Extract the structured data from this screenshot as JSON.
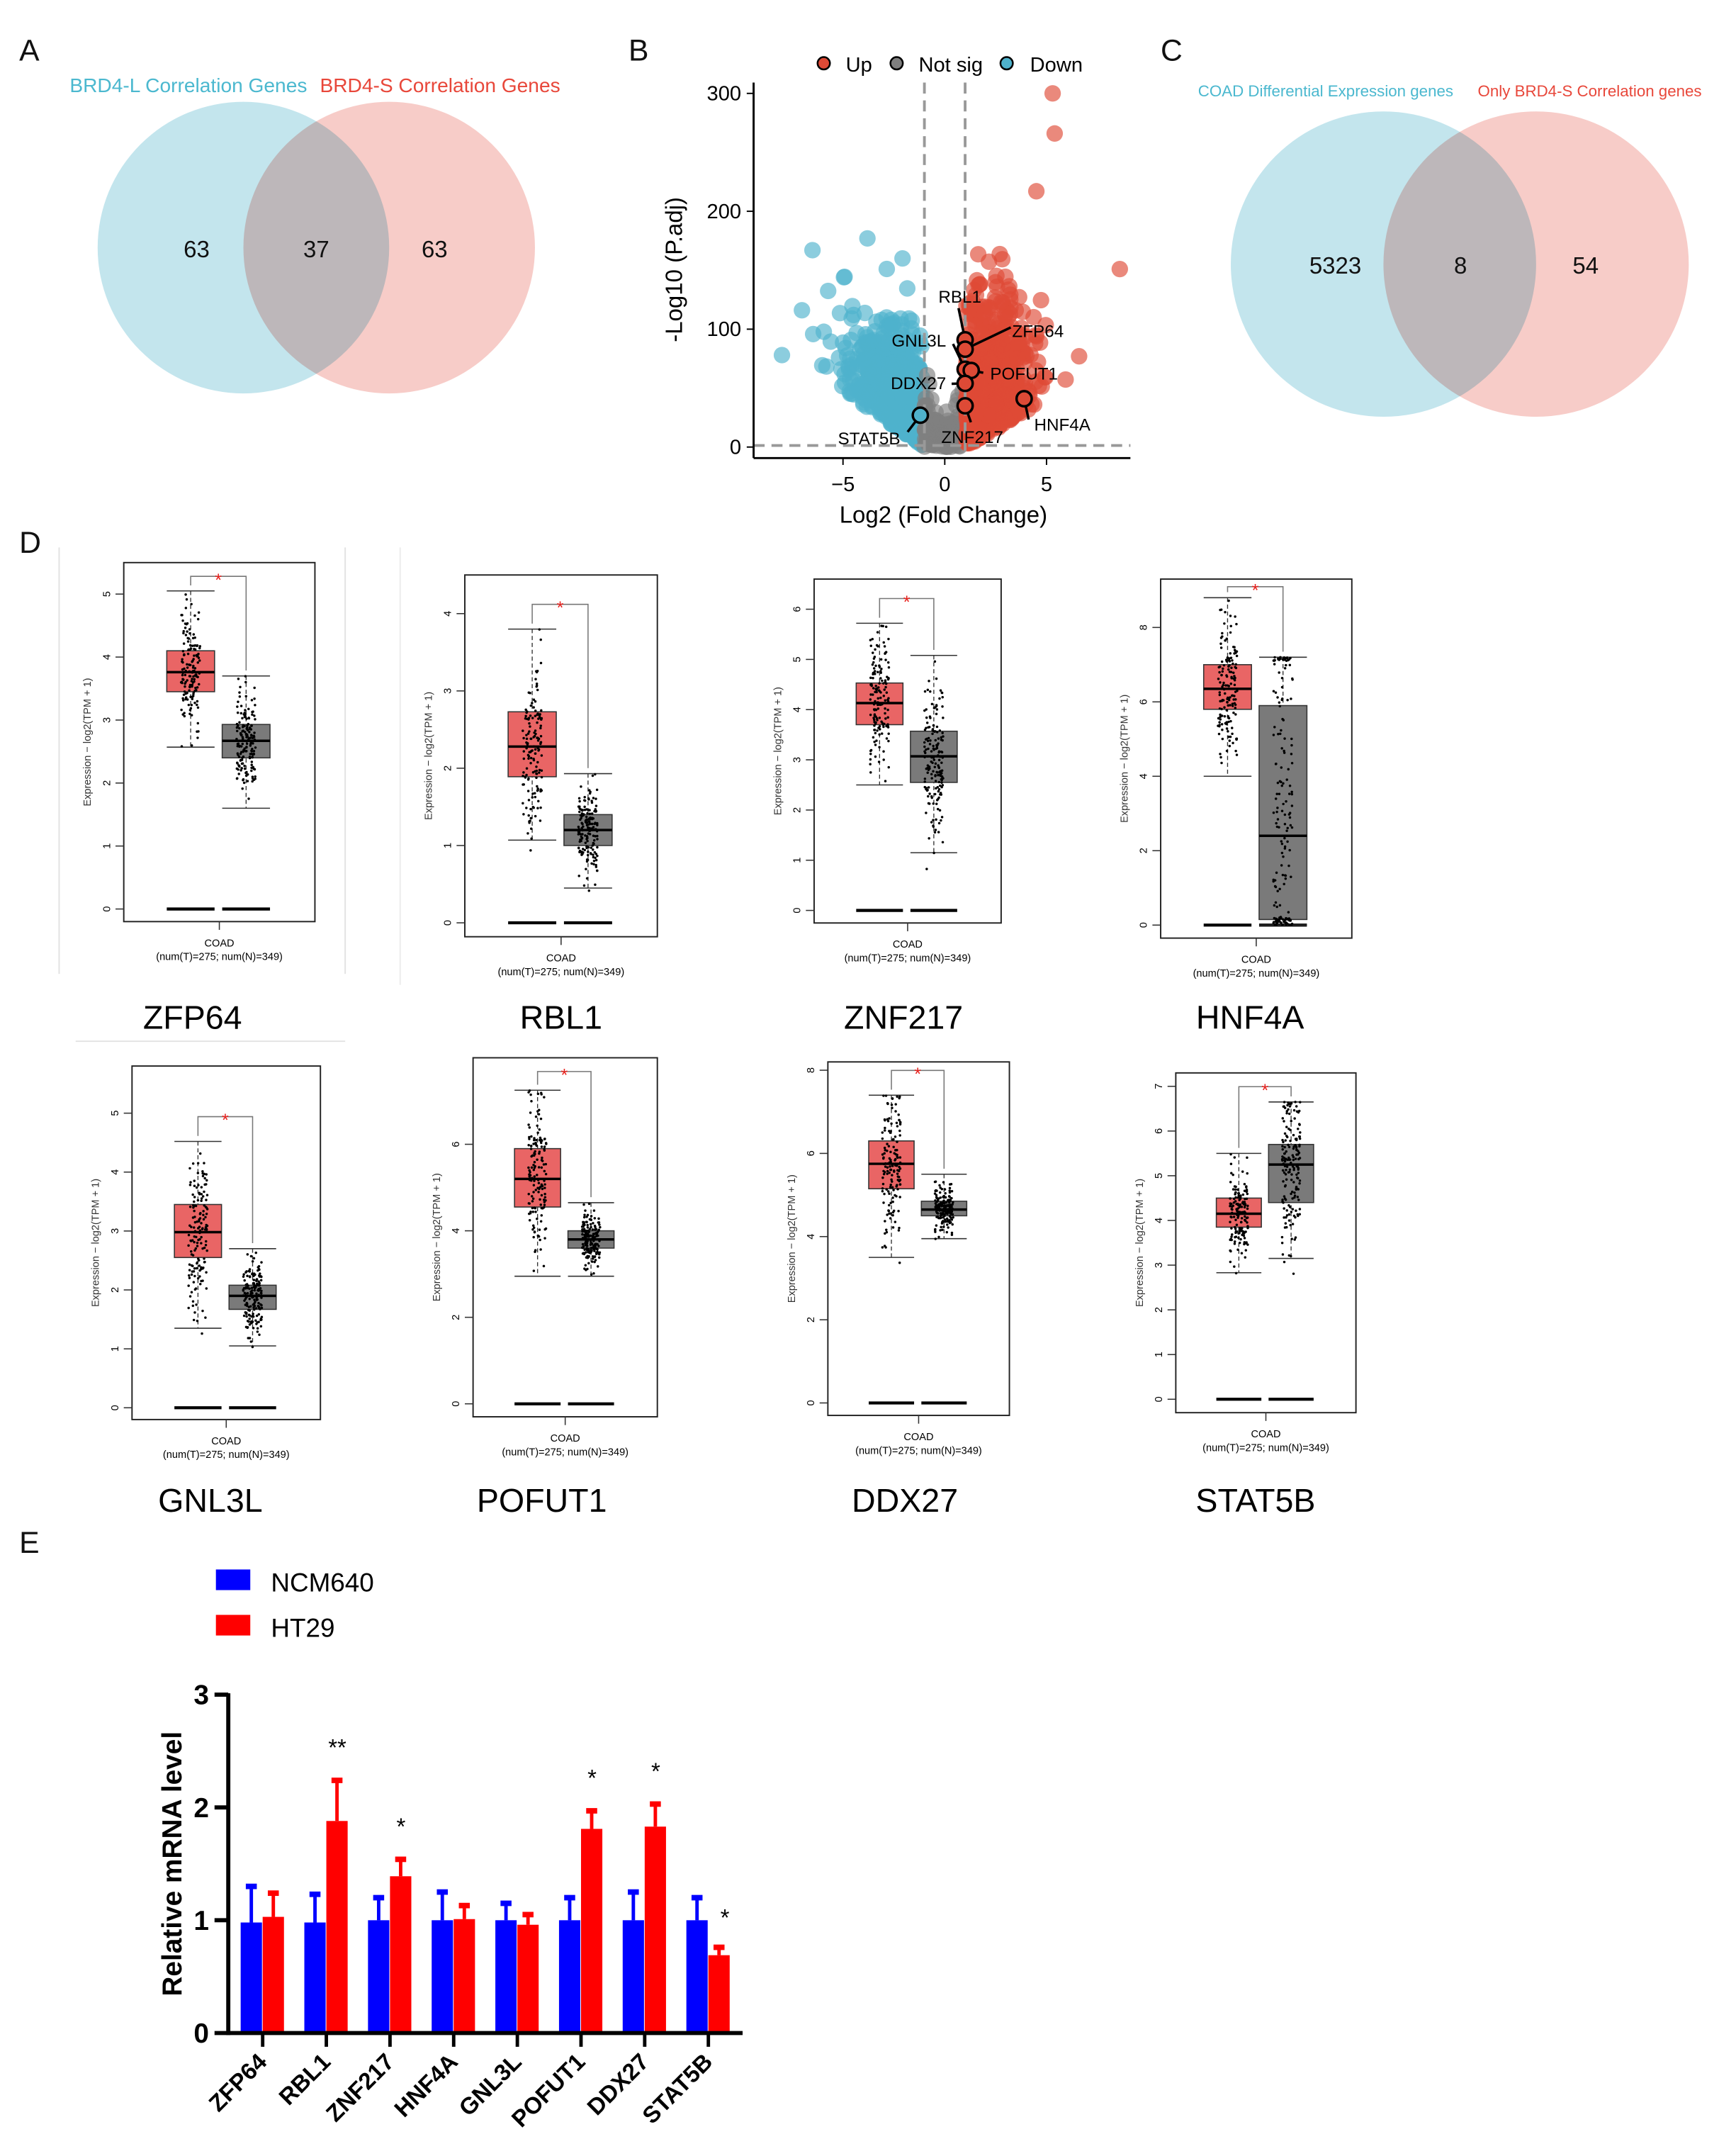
{
  "panels": {
    "a": "A",
    "b": "B",
    "c": "C",
    "d": "D",
    "e": "E"
  },
  "chart_data": [
    {
      "panel": "A",
      "type": "venn",
      "sets": [
        {
          "name": "BRD4-L Correlation Genes",
          "color": "#b9e0ea"
        },
        {
          "name": "BRD4-S Correlation Genes",
          "color": "#f3b7b0"
        }
      ],
      "label_colors": [
        "#4bb8cf",
        "#e8473a"
      ],
      "values": {
        "only_left": "63",
        "overlap": "37",
        "only_right": "63"
      }
    },
    {
      "panel": "B",
      "type": "scatter",
      "xlabel": "Log2 (Fold Change)",
      "ylabel": "-Log10 (P.adj)",
      "xlim": [
        -9.2,
        9.3
      ],
      "ylim": [
        -10,
        310
      ],
      "xticks": [
        -5,
        0,
        5
      ],
      "yticks": [
        0,
        100,
        200,
        300
      ],
      "thresholds": {
        "log2fc": [
          -1,
          1
        ],
        "neg_log10_padj": 1.3
      },
      "legend": {
        "placement": "top",
        "items": [
          {
            "name": "Up",
            "color": "#de4a36"
          },
          {
            "name": "Not sig",
            "color": "#7f7f7f"
          },
          {
            "name": "Down",
            "color": "#4fb2cc"
          }
        ]
      },
      "extreme_points": [
        {
          "x": 5.3,
          "y": 300,
          "group": "Up"
        },
        {
          "x": 5.4,
          "y": 266,
          "group": "Up"
        },
        {
          "x": 4.5,
          "y": 217,
          "group": "Up"
        },
        {
          "x": 8.6,
          "y": 151,
          "group": "Up"
        },
        {
          "x": 6.6,
          "y": 77,
          "group": "Up"
        },
        {
          "x": -3.8,
          "y": 177,
          "group": "Down"
        },
        {
          "x": -6.5,
          "y": 167,
          "group": "Down"
        },
        {
          "x": -8.0,
          "y": 78,
          "group": "Down"
        }
      ],
      "labeled_genes": [
        {
          "gene": "RBL1",
          "x": 1.0,
          "y": 91,
          "group": "Up"
        },
        {
          "gene": "ZFP64",
          "x": 1.0,
          "y": 83,
          "group": "Up"
        },
        {
          "gene": "GNL3L",
          "x": 1.0,
          "y": 66,
          "group": "Up"
        },
        {
          "gene": "POFUT1",
          "x": 1.3,
          "y": 65,
          "group": "Up"
        },
        {
          "gene": "DDX27",
          "x": 1.0,
          "y": 54,
          "group": "Up"
        },
        {
          "gene": "ZNF217",
          "x": 1.0,
          "y": 35,
          "group": "Up"
        },
        {
          "gene": "HNF4A",
          "x": 3.9,
          "y": 41,
          "group": "Up"
        },
        {
          "gene": "STAT5B",
          "x": -1.2,
          "y": 27,
          "group": "Down"
        }
      ]
    },
    {
      "panel": "C",
      "type": "venn",
      "sets": [
        {
          "name": "COAD Differential Expression genes",
          "color": "#b9e0ea"
        },
        {
          "name": "Only BRD4-S Correlation genes",
          "color": "#f3b7b0"
        }
      ],
      "label_colors": [
        "#4bb8cf",
        "#e8473a"
      ],
      "values": {
        "only_left": "5323",
        "overlap": "8",
        "only_right": "54"
      }
    },
    {
      "panel": "D",
      "type": "boxplot",
      "ylabel": "Expression − log2(TPM + 1)",
      "xlabel": "COAD",
      "sample_note": "(num(T)=275; num(N)=349)",
      "significance": "*",
      "colors": {
        "tumor": "#e96565",
        "normal": "#7a7a7a",
        "star": "#e8201c"
      },
      "plots": [
        {
          "gene": "ZFP64",
          "ylim": [
            -0.2,
            5.5
          ],
          "yticks": [
            0,
            1,
            2,
            3,
            4,
            5
          ],
          "tumor": [
            2.57,
            3.45,
            3.76,
            4.1,
            5.05
          ],
          "normal": [
            1.6,
            2.4,
            2.67,
            2.93,
            3.7
          ]
        },
        {
          "gene": "RBL1",
          "ylim": [
            -0.18,
            4.5
          ],
          "yticks": [
            0,
            1,
            2,
            3,
            4
          ],
          "tumor": [
            1.07,
            1.89,
            2.28,
            2.73,
            3.8
          ],
          "normal": [
            0.45,
            1.0,
            1.2,
            1.4,
            1.93
          ]
        },
        {
          "gene": "ZNF217",
          "ylim": [
            -0.25,
            6.6
          ],
          "yticks": [
            0,
            1,
            2,
            3,
            4,
            5,
            6
          ],
          "tumor": [
            2.5,
            3.7,
            4.13,
            4.53,
            5.72
          ],
          "normal": [
            1.15,
            2.55,
            3.07,
            3.57,
            5.08
          ]
        },
        {
          "gene": "HNF4A",
          "ylim": [
            -0.35,
            9.3
          ],
          "yticks": [
            0,
            2,
            4,
            6,
            8
          ],
          "tumor": [
            4.0,
            5.8,
            6.35,
            7.0,
            8.8
          ],
          "normal": [
            0.0,
            0.15,
            2.4,
            5.9,
            7.2
          ]
        },
        {
          "gene": "GNL3L",
          "ylim": [
            -0.2,
            5.8
          ],
          "yticks": [
            0,
            1,
            2,
            3,
            4,
            5
          ],
          "tumor": [
            1.35,
            2.55,
            2.98,
            3.45,
            4.52
          ],
          "normal": [
            1.05,
            1.67,
            1.9,
            2.08,
            2.7
          ]
        },
        {
          "gene": "POFUT1",
          "ylim": [
            -0.3,
            8.0
          ],
          "yticks": [
            0,
            2,
            4,
            6
          ],
          "tumor": [
            2.95,
            4.55,
            5.2,
            5.9,
            7.25
          ],
          "normal": [
            2.95,
            3.6,
            3.8,
            4.0,
            4.65
          ]
        },
        {
          "gene": "DDX27",
          "ylim": [
            -0.3,
            8.2
          ],
          "yticks": [
            0,
            2,
            4,
            6,
            8
          ],
          "tumor": [
            3.5,
            5.15,
            5.75,
            6.3,
            7.4
          ],
          "normal": [
            3.95,
            4.5,
            4.65,
            4.85,
            5.5
          ]
        },
        {
          "gene": "STAT5B",
          "ylim": [
            -0.3,
            7.3
          ],
          "yticks": [
            0,
            1,
            2,
            3,
            4,
            5,
            6,
            7
          ],
          "tumor": [
            2.83,
            3.85,
            4.15,
            4.5,
            5.5
          ],
          "normal": [
            3.15,
            4.4,
            5.25,
            5.7,
            6.65
          ]
        }
      ]
    },
    {
      "panel": "E",
      "type": "bar",
      "ylabel": "Relative mRNA level",
      "ylim": [
        0,
        3
      ],
      "yticks": [
        0,
        1,
        2,
        3
      ],
      "legend": {
        "placement": "top-left"
      },
      "categories": [
        "ZFP64",
        "RBL1",
        "ZNF217",
        "HNF4A",
        "GNL3L",
        "POFUT1",
        "DDX27",
        "STAT5B"
      ],
      "series": [
        {
          "name": "NCM640",
          "color": "#0000ff",
          "values": [
            0.98,
            0.98,
            1.0,
            1.0,
            1.0,
            1.0,
            1.0,
            1.0
          ],
          "error_top": [
            1.3,
            1.23,
            1.2,
            1.25,
            1.15,
            1.2,
            1.25,
            1.2
          ]
        },
        {
          "name": "HT29",
          "color": "#ff0000",
          "values": [
            1.03,
            1.88,
            1.39,
            1.01,
            0.96,
            1.81,
            1.83,
            0.69
          ],
          "error_top": [
            1.24,
            2.24,
            1.54,
            1.13,
            1.05,
            1.97,
            2.03,
            0.76
          ]
        }
      ],
      "annotations": [
        "",
        "**",
        "*",
        "",
        "",
        "*",
        "*",
        "*"
      ]
    }
  ]
}
